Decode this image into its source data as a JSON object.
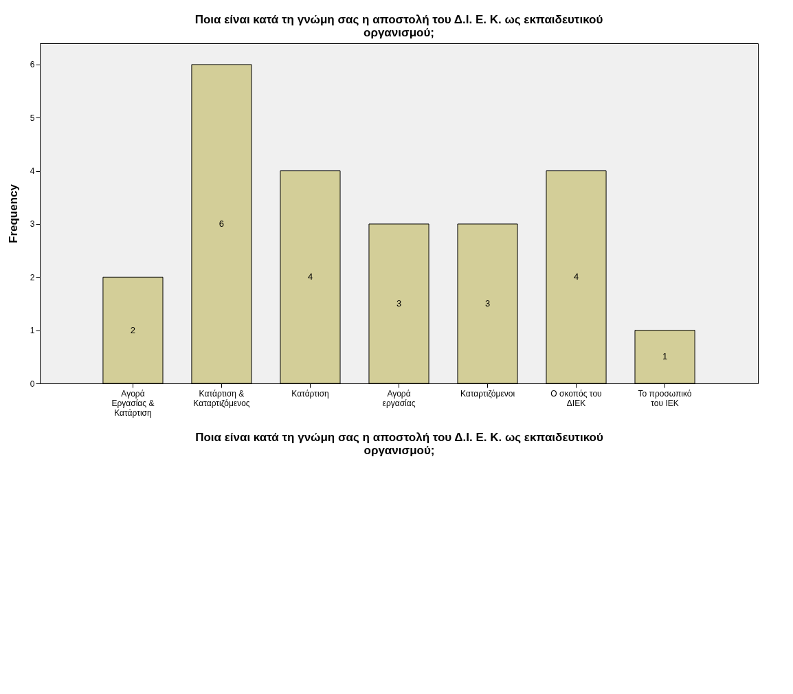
{
  "chart_data": {
    "type": "bar",
    "title": "Ποια είναι κατά τη γνώμη σας η αποστολή του Δ.Ι. Ε. Κ. ως εκπαιδευτικού οργανισμού;",
    "xlabel": "Ποια είναι κατά τη γνώμη σας η αποστολή του Δ.Ι. Ε. Κ. ως εκπαιδευτικού οργανισμού;",
    "ylabel": "Frequency",
    "categories": [
      "Αγορά Εργασίας & Κατάρτιση",
      "Κατάρτιση & Καταρτιζόμενος",
      "Κατάρτιση",
      "Αγορά εργασίας",
      "Καταρτιζόμενοι",
      "Ο σκοπός του ΔΙΕΚ",
      "Το προσωπικό του ΙΕΚ"
    ],
    "values": [
      2,
      6,
      4,
      3,
      3,
      4,
      1
    ],
    "color": "#d3ce98",
    "ylim": [
      0,
      6.4
    ],
    "yticks": [
      0,
      1,
      2,
      3,
      4,
      5,
      6
    ],
    "grid": false,
    "data_labels": true
  }
}
